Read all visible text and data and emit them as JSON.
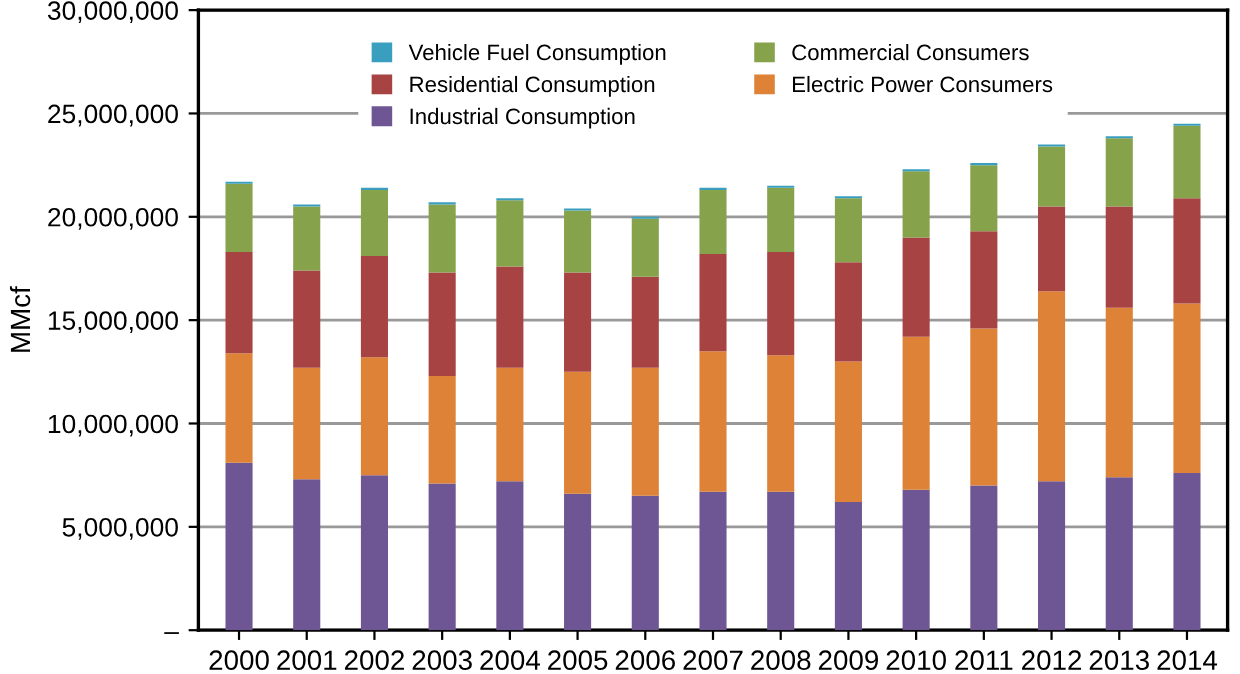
{
  "chart_data": {
    "type": "bar",
    "stacked": true,
    "ylabel": "MMcf",
    "categories": [
      "2000",
      "2001",
      "2002",
      "2003",
      "2004",
      "2005",
      "2006",
      "2007",
      "2008",
      "2009",
      "2010",
      "2011",
      "2012",
      "2013",
      "2014"
    ],
    "series": [
      {
        "name": "Industrial Consumption",
        "color": "#6e5593",
        "values": [
          8100000,
          7300000,
          7500000,
          7100000,
          7200000,
          6600000,
          6500000,
          6700000,
          6700000,
          6200000,
          6800000,
          7000000,
          7200000,
          7400000,
          7600000
        ]
      },
      {
        "name": "Electric Power Consumers",
        "color": "#dd8236",
        "values": [
          5300000,
          5400000,
          5700000,
          5200000,
          5500000,
          5900000,
          6200000,
          6800000,
          6600000,
          6800000,
          7400000,
          7600000,
          9200000,
          8200000,
          8200000
        ]
      },
      {
        "name": "Residential Consumption",
        "color": "#a84343",
        "values": [
          4900000,
          4700000,
          4900000,
          5000000,
          4900000,
          4800000,
          4400000,
          4700000,
          5000000,
          4800000,
          4800000,
          4700000,
          4100000,
          4900000,
          5100000
        ]
      },
      {
        "name": "Commercial Consumers",
        "color": "#86a24a",
        "values": [
          3300000,
          3100000,
          3200000,
          3300000,
          3200000,
          3000000,
          2800000,
          3100000,
          3100000,
          3100000,
          3200000,
          3200000,
          2900000,
          3300000,
          3500000
        ]
      },
      {
        "name": "Vehicle Fuel Consumption",
        "color": "#3a9fbf",
        "values": [
          100000,
          100000,
          100000,
          100000,
          100000,
          100000,
          100000,
          100000,
          100000,
          100000,
          100000,
          100000,
          100000,
          100000,
          100000
        ]
      }
    ],
    "ylim": [
      0,
      30000000
    ],
    "yticks": [
      {
        "value": 0,
        "label": "–"
      },
      {
        "value": 5000000,
        "label": "5,000,000"
      },
      {
        "value": 10000000,
        "label": "10,000,000"
      },
      {
        "value": 15000000,
        "label": "15,000,000"
      },
      {
        "value": 20000000,
        "label": "20,000,000"
      },
      {
        "value": 25000000,
        "label": "25,000,000"
      },
      {
        "value": 30000000,
        "label": "30,000,000"
      }
    ],
    "grid": "y",
    "legend": "top"
  }
}
